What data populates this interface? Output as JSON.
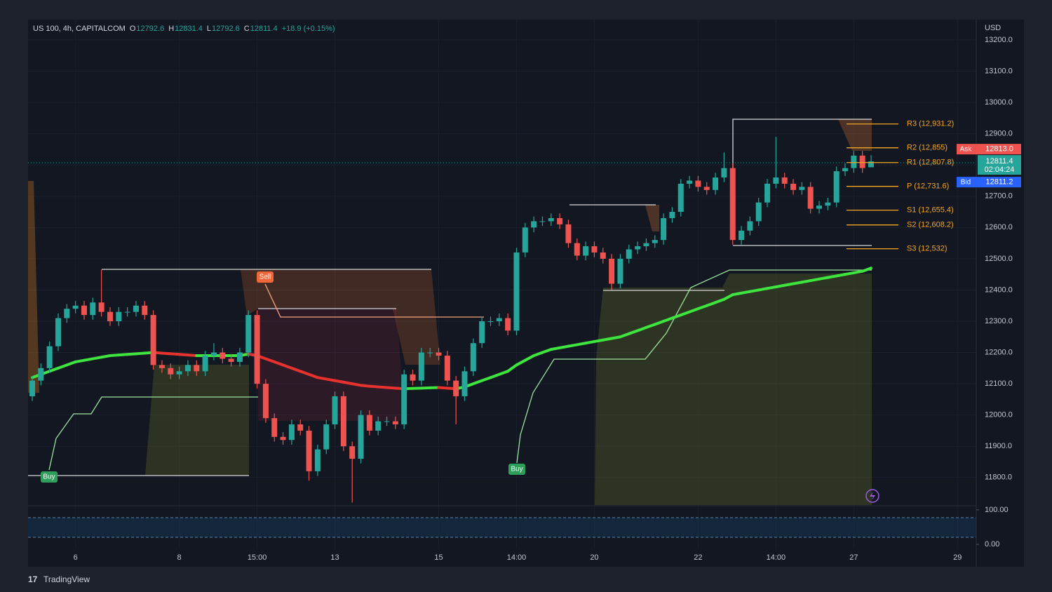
{
  "chart_data": {
    "type": "candlestick",
    "header": {
      "symbol": "US 100, 4h, CAPITALCOM",
      "fields": [
        {
          "label": "O",
          "value": 12792.6
        },
        {
          "label": "H",
          "value": 12831.4
        },
        {
          "label": "L",
          "value": 12792.6
        },
        {
          "label": "C",
          "value": 12811.4
        }
      ],
      "change": "+18.9 (+0.15%)"
    },
    "currency": "USD",
    "brand": "TradingView",
    "up_color": "#26a69a",
    "down_color": "#ef5350",
    "grid": true,
    "categories": [
      null,
      null,
      null,
      null,
      null,
      "6",
      null,
      null,
      null,
      null,
      null,
      null,
      null,
      null,
      null,
      null,
      null,
      "8",
      null,
      null,
      null,
      null,
      null,
      null,
      null,
      null,
      "15:00",
      null,
      null,
      null,
      null,
      null,
      null,
      null,
      null,
      "13",
      null,
      null,
      null,
      null,
      null,
      null,
      null,
      null,
      null,
      null,
      null,
      "15",
      null,
      null,
      null,
      null,
      null,
      null,
      null,
      null,
      "14:00",
      null,
      null,
      null,
      null,
      null,
      null,
      null,
      null,
      "20",
      null,
      null,
      null,
      null,
      null,
      null,
      null,
      null,
      null,
      null,
      null,
      "22",
      null,
      null,
      null,
      null,
      null,
      null,
      null,
      null,
      "14:00",
      null,
      null,
      null,
      null,
      null,
      null,
      null,
      null,
      "27",
      null,
      null,
      null,
      null,
      null,
      null,
      null,
      null,
      null,
      null,
      null,
      "29",
      null,
      null
    ],
    "open": [
      12060,
      12110,
      12150,
      12220,
      12310,
      12340,
      12350,
      12320,
      12360,
      12330,
      12300,
      12330,
      12330,
      12350,
      12320,
      12160,
      12150,
      12130,
      12140,
      12160,
      12140,
      12190,
      12200,
      12180,
      12170,
      12200,
      12320,
      12100,
      11990,
      11930,
      11920,
      11970,
      11950,
      11820,
      11890,
      11970,
      12060,
      11900,
      11860,
      12000,
      11950,
      11980,
      11980,
      11970,
      12130,
      12110,
      12200,
      12200,
      12190,
      12110,
      12060,
      12140,
      12230,
      12300,
      12300,
      12310,
      12270,
      12520,
      12600,
      12620,
      12620,
      12630,
      12610,
      12550,
      12510,
      12540,
      12520,
      12500,
      12420,
      12500,
      12530,
      12540,
      12550,
      12560,
      12630,
      12650,
      12740,
      12750,
      12730,
      12720,
      12760,
      12790,
      12560,
      12590,
      12620,
      12680,
      12740,
      12760,
      12740,
      12720,
      12730,
      12660,
      12670,
      12680,
      12780,
      12790,
      12830,
      12792.6,
      null,
      null,
      null,
      null,
      null,
      null,
      null,
      null,
      null,
      null,
      null,
      null
    ],
    "high": [
      12125,
      12165,
      12235,
      12325,
      12355,
      12365,
      12365,
      12375,
      12465,
      12345,
      12345,
      12345,
      12365,
      12365,
      12335,
      12175,
      12165,
      12155,
      12175,
      12175,
      12205,
      12230,
      12215,
      12195,
      12215,
      12335,
      12335,
      12115,
      12005,
      11945,
      11985,
      11985,
      11965,
      11905,
      11985,
      12075,
      12075,
      11915,
      12015,
      12015,
      11995,
      11995,
      11995,
      12145,
      12145,
      12215,
      12215,
      12215,
      12205,
      12125,
      12155,
      12245,
      12315,
      12315,
      12325,
      12325,
      12535,
      12615,
      12635,
      12635,
      12645,
      12645,
      12625,
      12565,
      12555,
      12555,
      12535,
      12515,
      12515,
      12545,
      12555,
      12565,
      12575,
      12645,
      12665,
      12755,
      12765,
      12765,
      12745,
      12775,
      12840,
      12805,
      12605,
      12635,
      12695,
      12755,
      12890,
      12775,
      12755,
      12745,
      12745,
      12685,
      12695,
      12795,
      12805,
      12845,
      12845,
      12831.4,
      null,
      null,
      null,
      null,
      null,
      null,
      null,
      null,
      null,
      null,
      null,
      null
    ],
    "low": [
      12045,
      12095,
      12135,
      12205,
      12295,
      12325,
      12305,
      12305,
      12315,
      12285,
      12285,
      12315,
      12315,
      12305,
      12145,
      12135,
      12115,
      12115,
      12125,
      12125,
      12125,
      12175,
      12165,
      12155,
      12155,
      12185,
      12085,
      11975,
      11915,
      11905,
      11905,
      11935,
      11790,
      11805,
      11875,
      11955,
      11885,
      11720,
      11845,
      11935,
      11935,
      11965,
      11955,
      11955,
      12095,
      12095,
      12185,
      12175,
      12095,
      11970,
      12045,
      12125,
      12215,
      12285,
      12285,
      12255,
      12255,
      12505,
      12585,
      12605,
      12605,
      12595,
      12535,
      12495,
      12495,
      12505,
      12485,
      12400,
      12405,
      12485,
      12515,
      12525,
      12535,
      12545,
      12615,
      12635,
      12725,
      12715,
      12705,
      12705,
      12745,
      12545,
      12545,
      12575,
      12605,
      12665,
      12725,
      12725,
      12705,
      12705,
      12645,
      12645,
      12655,
      12665,
      12765,
      12775,
      12775,
      12792.6,
      null,
      null,
      null,
      null,
      null,
      null,
      null,
      null,
      null,
      null,
      null,
      null
    ],
    "close": [
      12110,
      12150,
      12220,
      12310,
      12340,
      12350,
      12320,
      12360,
      12330,
      12300,
      12330,
      12330,
      12350,
      12320,
      12160,
      12150,
      12130,
      12140,
      12160,
      12140,
      12190,
      12200,
      12180,
      12170,
      12200,
      12320,
      12100,
      11990,
      11930,
      11920,
      11970,
      11950,
      11820,
      11890,
      11970,
      12060,
      11900,
      11860,
      12000,
      11950,
      11980,
      11980,
      11970,
      12130,
      12110,
      12200,
      12200,
      12190,
      12110,
      12060,
      12140,
      12230,
      12300,
      12300,
      12310,
      12270,
      12520,
      12600,
      12620,
      12620,
      12630,
      12610,
      12550,
      12510,
      12540,
      12520,
      12500,
      12420,
      12500,
      12530,
      12540,
      12550,
      12560,
      12630,
      12650,
      12740,
      12750,
      12730,
      12720,
      12760,
      12790,
      12560,
      12590,
      12620,
      12680,
      12740,
      12760,
      12740,
      12720,
      12730,
      12660,
      12670,
      12680,
      12780,
      12790,
      12830,
      12790,
      12811.4,
      null,
      null,
      null,
      null,
      null,
      null,
      null,
      null,
      null,
      null,
      null,
      null
    ],
    "ma": [
      12120,
      12130,
      12140,
      12150,
      12160,
      12170,
      12175,
      12180,
      12185,
      12190,
      12192,
      12194,
      12196,
      12198,
      12200,
      12198,
      12196,
      12194,
      12192,
      12190,
      12190,
      12190,
      12190,
      12190,
      12190,
      12195,
      12190,
      12180,
      12170,
      12160,
      12150,
      12140,
      12130,
      12120,
      12115,
      12110,
      12105,
      12100,
      12095,
      12092,
      12090,
      12088,
      12086,
      12084,
      12085,
      12086,
      12087,
      12088,
      12086,
      12084,
      12090,
      12100,
      12110,
      12120,
      12130,
      12140,
      12160,
      12175,
      12190,
      12200,
      12210,
      12215,
      12220,
      12225,
      12230,
      12235,
      12240,
      12245,
      12250,
      12260,
      12270,
      12280,
      12290,
      12300,
      12310,
      12320,
      12330,
      12340,
      12350,
      12360,
      12370,
      12385,
      12390,
      12395,
      12400,
      12405,
      12410,
      12415,
      12420,
      12425,
      12430,
      12435,
      12440,
      12445,
      12450,
      12455,
      12460,
      12470,
      null,
      null,
      null,
      null,
      null,
      null,
      null,
      null,
      null,
      null,
      null,
      null
    ],
    "ylim": [
      11712,
      13265
    ],
    "yticks": [
      {
        "value": 13200,
        "label": "13200.0"
      },
      {
        "value": 13100,
        "label": "13100.0"
      },
      {
        "value": 13000,
        "label": "13000.0"
      },
      {
        "value": 12900,
        "label": "12900.0"
      },
      {
        "value": 12800,
        "label": "12800.0"
      },
      {
        "value": 12700,
        "label": "12700.0"
      },
      {
        "value": 12600,
        "label": "12600.0"
      },
      {
        "value": 12500,
        "label": "12500.0"
      },
      {
        "value": 12400,
        "label": "12400.0"
      },
      {
        "value": 12300,
        "label": "12300.0"
      },
      {
        "value": 12200,
        "label": "12200.0"
      },
      {
        "value": 12100,
        "label": "12100.0"
      },
      {
        "value": 12000,
        "label": "12000.0"
      },
      {
        "value": 11900,
        "label": "11900.0"
      },
      {
        "value": 11800,
        "label": "11800.0"
      }
    ],
    "pivots": [
      {
        "label": "R3 (12,931.2)",
        "value": 12931.2
      },
      {
        "label": "R2 (12,855)",
        "value": 12855
      },
      {
        "label": "R1 (12,807.8)",
        "value": 12807.8
      },
      {
        "label": "P (12,731.6)",
        "value": 12731.6
      },
      {
        "label": "S1 (12,655.4)",
        "value": 12655.4
      },
      {
        "label": "S2 (12,608.2)",
        "value": 12608.2
      },
      {
        "label": "S3 (12,532)",
        "value": 12532
      }
    ],
    "ask": {
      "label": "Ask",
      "price": {
        "value": 12813,
        "label": "12813.0"
      }
    },
    "last": {
      "value": 12811.4,
      "countdown": "02:04:24"
    },
    "bid": {
      "label": "Bid",
      "price": 12811.2
    },
    "signals": [
      "Buy",
      "Sell",
      "Buy"
    ],
    "osc_ylim": [
      -12,
      110
    ],
    "osc_yticks": [
      {
        "value": 100,
        "label": "100.00"
      },
      {
        "value": 0,
        "label": "0.00"
      }
    ]
  }
}
